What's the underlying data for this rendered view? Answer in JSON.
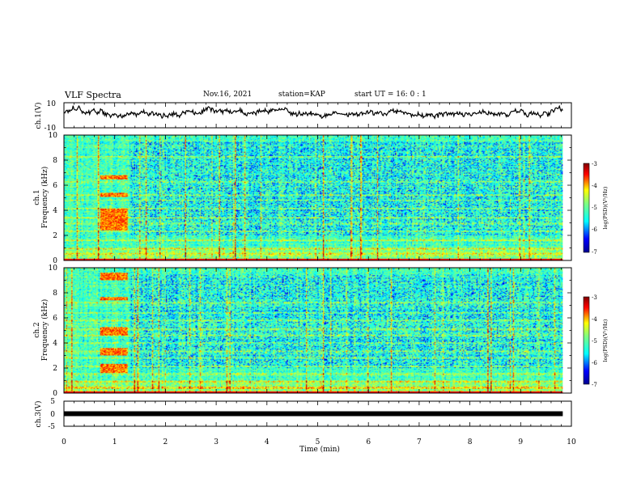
{
  "header": {
    "title": "VLF Spectra",
    "date": "Nov.16, 2021",
    "station": "station=KAP",
    "start": "start UT =  16: 0  : 1"
  },
  "chart_data": [
    {
      "type": "line",
      "panel": "ch1-waveform",
      "ylabel": "ch.1(V)",
      "ylim": [
        -10,
        10
      ],
      "yticks": [
        "10",
        "-10"
      ],
      "xlim": [
        0,
        10
      ],
      "data_end_min": 9.83,
      "approx_mean": 2,
      "approx_amplitude": 3
    },
    {
      "type": "heatmap",
      "panel": "ch1-spectrogram",
      "ylabel": "ch.1\nFrequency (kHz)",
      "ylim": [
        0,
        10
      ],
      "yticks": [
        "0",
        "2",
        "4",
        "6",
        "8",
        "10"
      ],
      "xlim": [
        0,
        10
      ],
      "colorbar": {
        "label": "log(PSD)(V²/Hz)",
        "range": [
          -7,
          -3
        ],
        "ticks": [
          "-3",
          "-4",
          "-5",
          "-6",
          "-7"
        ]
      },
      "features": {
        "bright_lines_khz": [
          0.5,
          0.9,
          1.6,
          2.3,
          2.9,
          3.4,
          4.1,
          4.8,
          5.2,
          6.3,
          8.3
        ],
        "burst_window_min": [
          0.7,
          1.25
        ],
        "burst_bands_khz": [
          [
            2.4,
            4.1
          ],
          [
            5.1,
            5.4
          ],
          [
            6.5,
            6.8
          ]
        ]
      }
    },
    {
      "type": "heatmap",
      "panel": "ch2-spectrogram",
      "ylabel": "ch.2\nFrequency (kHz)",
      "ylim": [
        0,
        10
      ],
      "yticks": [
        "0",
        "2",
        "4",
        "6",
        "8",
        "10"
      ],
      "xlim": [
        0,
        10
      ],
      "colorbar": {
        "label": "log(PSD)(V²/Hz)",
        "range": [
          -7,
          -3
        ],
        "ticks": [
          "-3",
          "-4",
          "-5",
          "-6",
          "-7"
        ]
      },
      "features": {
        "bright_lines_khz": [
          0.4,
          0.9,
          1.5,
          2.1,
          2.8,
          3.3,
          4.0,
          4.6,
          5.1,
          5.8,
          6.4,
          7.2
        ],
        "burst_window_min": [
          0.7,
          1.25
        ],
        "burst_bands_khz": [
          [
            1.6,
            2.3
          ],
          [
            3.0,
            3.6
          ],
          [
            4.6,
            5.3
          ],
          [
            7.4,
            7.7
          ],
          [
            9.0,
            9.6
          ]
        ]
      }
    },
    {
      "type": "line",
      "panel": "ch3-waveform",
      "ylabel": "ch.3(V)",
      "ylim": [
        -5,
        5
      ],
      "yticks": [
        "5",
        "0",
        "-5"
      ],
      "xlim": [
        0,
        10
      ],
      "data_end_min": 9.83,
      "approx_value": 0
    }
  ],
  "xaxis": {
    "label": "Time  (min)",
    "ticks": [
      "0",
      "1",
      "2",
      "3",
      "4",
      "5",
      "6",
      "7",
      "8",
      "9",
      "10"
    ]
  },
  "colors": {
    "colormap": [
      "#00008f",
      "#0000ff",
      "#00ffff",
      "#7fff7f",
      "#ffff00",
      "#ff0000",
      "#800000"
    ]
  }
}
